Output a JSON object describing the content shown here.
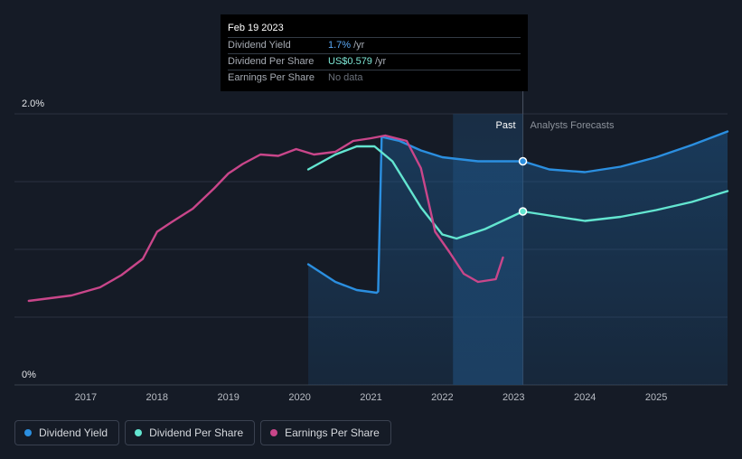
{
  "tooltip": {
    "date": "Feb 19 2023",
    "rows": [
      {
        "label": "Dividend Yield",
        "value": "1.7%",
        "unit": "/yr"
      },
      {
        "label": "Dividend Per Share",
        "value": "US$0.579",
        "unit": "/yr"
      },
      {
        "label": "Earnings Per Share",
        "value": "No data",
        "unit": ""
      }
    ]
  },
  "legend": [
    {
      "label": "Dividend Yield",
      "color": "#2b8fe0"
    },
    {
      "label": "Dividend Per Share",
      "color": "#63e5d0"
    },
    {
      "label": "Earnings Per Share",
      "color": "#c9468a"
    }
  ],
  "chart_data": {
    "type": "line",
    "title": "",
    "xlabel": "",
    "ylabel": "",
    "y_tick_labels": [
      "2.0%",
      "0%"
    ],
    "x_tick_labels": [
      "2017",
      "2018",
      "2019",
      "2020",
      "2021",
      "2022",
      "2023",
      "2024",
      "2025"
    ],
    "xlim": [
      2016.0,
      2026.0
    ],
    "ylim": [
      0,
      2.0
    ],
    "region_labels": {
      "past": "Past",
      "forecast": "Analysts Forecasts"
    },
    "past_region_start": 2022.15,
    "past_divider": 2023.13,
    "series": [
      {
        "name": "Dividend Yield",
        "color": "#2b8fe0",
        "fill": true,
        "points": [
          [
            2020.12,
            0.89
          ],
          [
            2020.5,
            0.76
          ],
          [
            2020.8,
            0.7
          ],
          [
            2021.08,
            0.68
          ],
          [
            2021.1,
            0.69
          ],
          [
            2021.15,
            1.83
          ],
          [
            2021.4,
            1.8
          ],
          [
            2021.7,
            1.73
          ],
          [
            2022.0,
            1.68
          ],
          [
            2022.5,
            1.65
          ],
          [
            2023.13,
            1.65
          ],
          [
            2023.5,
            1.59
          ],
          [
            2024.0,
            1.57
          ],
          [
            2024.5,
            1.61
          ],
          [
            2025.0,
            1.68
          ],
          [
            2025.5,
            1.77
          ],
          [
            2026.0,
            1.87
          ]
        ],
        "highlight": [
          2023.13,
          1.65
        ]
      },
      {
        "name": "Dividend Per Share",
        "color": "#63e5d0",
        "fill": false,
        "points": [
          [
            2020.12,
            1.59
          ],
          [
            2020.5,
            1.7
          ],
          [
            2020.8,
            1.76
          ],
          [
            2021.05,
            1.76
          ],
          [
            2021.3,
            1.65
          ],
          [
            2021.7,
            1.31
          ],
          [
            2022.0,
            1.11
          ],
          [
            2022.2,
            1.08
          ],
          [
            2022.6,
            1.15
          ],
          [
            2023.13,
            1.28
          ],
          [
            2023.5,
            1.25
          ],
          [
            2024.0,
            1.21
          ],
          [
            2024.5,
            1.24
          ],
          [
            2025.0,
            1.29
          ],
          [
            2025.5,
            1.35
          ],
          [
            2026.0,
            1.43
          ]
        ],
        "highlight": [
          2023.13,
          1.28
        ]
      },
      {
        "name": "Earnings Per Share",
        "color": "#c9468a",
        "fill": false,
        "points": [
          [
            2016.2,
            0.62
          ],
          [
            2016.5,
            0.64
          ],
          [
            2016.8,
            0.66
          ],
          [
            2017.2,
            0.72
          ],
          [
            2017.5,
            0.81
          ],
          [
            2017.8,
            0.93
          ],
          [
            2018.0,
            1.13
          ],
          [
            2018.2,
            1.2
          ],
          [
            2018.5,
            1.3
          ],
          [
            2018.8,
            1.45
          ],
          [
            2019.0,
            1.56
          ],
          [
            2019.2,
            1.63
          ],
          [
            2019.45,
            1.7
          ],
          [
            2019.7,
            1.69
          ],
          [
            2019.95,
            1.74
          ],
          [
            2020.2,
            1.7
          ],
          [
            2020.5,
            1.72
          ],
          [
            2020.75,
            1.8
          ],
          [
            2021.0,
            1.82
          ],
          [
            2021.2,
            1.84
          ],
          [
            2021.5,
            1.8
          ],
          [
            2021.7,
            1.6
          ],
          [
            2021.9,
            1.13
          ],
          [
            2022.1,
            0.98
          ],
          [
            2022.3,
            0.82
          ],
          [
            2022.5,
            0.76
          ],
          [
            2022.75,
            0.78
          ],
          [
            2022.85,
            0.94
          ]
        ]
      }
    ]
  }
}
